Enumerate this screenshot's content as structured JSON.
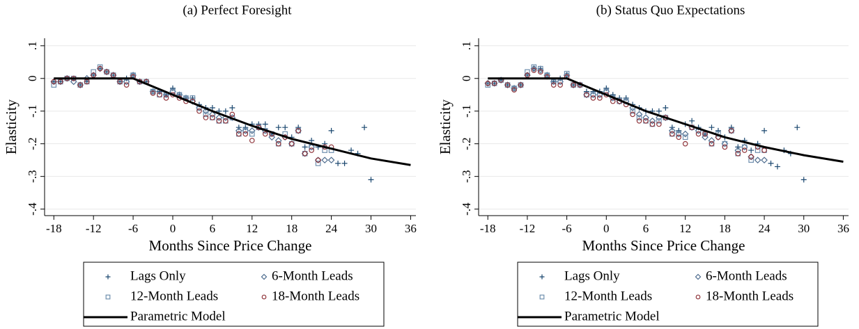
{
  "chart_data": [
    {
      "type": "scatter",
      "title": "(a) Perfect Foresight",
      "x_label": "Months Since Price Change",
      "y_label": "Elasticity",
      "xlim": [
        -19.4,
        36.8
      ],
      "ylim": [
        -0.42,
        0.123
      ],
      "xticks": [
        -18,
        -12,
        -6,
        0,
        6,
        12,
        18,
        24,
        30,
        36
      ],
      "yticks": [
        {
          "value": 0.1,
          "label": ".1"
        },
        0,
        {
          "value": -0.1,
          "label": "-.1"
        },
        {
          "value": -0.2,
          "label": "-.2"
        },
        {
          "value": -0.3,
          "label": "-.3"
        },
        {
          "value": -0.4,
          "label": "-.4"
        }
      ],
      "grid": true,
      "series": [
        {
          "name": "Lags Only",
          "marker": "plus",
          "color": "#1a476f",
          "x": [
            -18,
            -17,
            -16,
            -15,
            -14,
            -13,
            -12,
            -11,
            -10,
            -9,
            -8,
            -7,
            -6,
            -5,
            -4,
            -3,
            -2,
            -1,
            0,
            1,
            2,
            3,
            4,
            5,
            6,
            7,
            8,
            9,
            10,
            11,
            12,
            13,
            14,
            15,
            16,
            17,
            18,
            19,
            20,
            21,
            22,
            23,
            24,
            25,
            26,
            27,
            28,
            29,
            30
          ],
          "values": [
            -0.01,
            -0.01,
            0,
            0,
            -0.02,
            -0.01,
            0.01,
            0.03,
            0.02,
            0.01,
            -0.01,
            0,
            0.01,
            -0.01,
            -0.01,
            -0.04,
            -0.04,
            -0.05,
            -0.03,
            -0.05,
            -0.06,
            -0.06,
            -0.08,
            -0.09,
            -0.09,
            -0.1,
            -0.1,
            -0.09,
            -0.15,
            -0.15,
            -0.14,
            -0.14,
            -0.14,
            -0.17,
            -0.15,
            -0.15,
            -0.18,
            -0.15,
            -0.21,
            -0.19,
            -0.21,
            -0.2,
            -0.16,
            -0.26,
            -0.26,
            -0.22,
            -0.23,
            -0.15,
            -0.31
          ]
        },
        {
          "name": "6-Month Leads",
          "marker": "diamond",
          "color": "#4f6d8f",
          "x": [
            -18,
            -17,
            -16,
            -15,
            -14,
            -13,
            -12,
            -11,
            -10,
            -9,
            -8,
            -7,
            -6,
            -5,
            -4,
            -3,
            -2,
            -1,
            0,
            1,
            2,
            3,
            4,
            5,
            6,
            7,
            8,
            9,
            10,
            11,
            12,
            13,
            14,
            15,
            16,
            17,
            18,
            19,
            20,
            21,
            22,
            23,
            24
          ],
          "values": [
            -0.01,
            -0.01,
            0,
            -0.01,
            -0.02,
            0,
            0.01,
            0.03,
            0.02,
            0.01,
            -0.01,
            -0.01,
            0.01,
            -0.01,
            -0.01,
            -0.04,
            -0.04,
            -0.05,
            -0.04,
            -0.05,
            -0.06,
            -0.07,
            -0.09,
            -0.1,
            -0.11,
            -0.12,
            -0.12,
            -0.12,
            -0.16,
            -0.16,
            -0.16,
            -0.15,
            -0.16,
            -0.18,
            -0.19,
            -0.18,
            -0.2,
            -0.16,
            -0.23,
            -0.21,
            -0.25,
            -0.25,
            -0.25
          ]
        },
        {
          "name": "12-Month Leads",
          "marker": "square",
          "color": "#6f8fae",
          "x": [
            -18,
            -17,
            -16,
            -15,
            -14,
            -13,
            -12,
            -11,
            -10,
            -9,
            -8,
            -7,
            -6,
            -5,
            -4,
            -3,
            -2,
            -1,
            0,
            1,
            2,
            3,
            4,
            5,
            6,
            7,
            8,
            9,
            10,
            11,
            12,
            13,
            14,
            15,
            16,
            17,
            18,
            19,
            20,
            21,
            22,
            23,
            24
          ],
          "values": [
            -0.02,
            -0.01,
            0,
            0,
            -0.02,
            -0.01,
            0.02,
            0.035,
            0.02,
            0.01,
            -0.01,
            -0.01,
            0.01,
            -0.01,
            -0.01,
            -0.04,
            -0.05,
            -0.05,
            -0.04,
            -0.05,
            -0.06,
            -0.06,
            -0.09,
            -0.11,
            -0.12,
            -0.13,
            -0.13,
            -0.12,
            -0.17,
            -0.16,
            -0.17,
            -0.15,
            -0.16,
            -0.17,
            -0.2,
            -0.17,
            -0.2,
            -0.16,
            -0.23,
            -0.21,
            -0.26,
            -0.22,
            -0.22
          ]
        },
        {
          "name": "18-Month Leads",
          "marker": "circle",
          "color": "#90353b",
          "x": [
            -18,
            -17,
            -16,
            -15,
            -14,
            -13,
            -12,
            -11,
            -10,
            -9,
            -8,
            -7,
            -6,
            -5,
            -4,
            -3,
            -2,
            -1,
            0,
            1,
            2,
            3,
            4,
            5,
            6,
            7,
            8,
            9,
            10,
            11,
            12,
            13,
            14,
            15,
            16,
            17,
            18,
            19,
            20,
            21,
            22,
            23,
            24
          ],
          "values": [
            -0.01,
            -0.01,
            0,
            0,
            -0.02,
            -0.01,
            0.01,
            0.03,
            0.02,
            0.01,
            -0.01,
            -0.02,
            0.005,
            -0.01,
            -0.01,
            -0.045,
            -0.05,
            -0.06,
            -0.05,
            -0.06,
            -0.07,
            -0.07,
            -0.1,
            -0.12,
            -0.12,
            -0.13,
            -0.13,
            -0.11,
            -0.17,
            -0.17,
            -0.19,
            -0.15,
            -0.17,
            -0.17,
            -0.2,
            -0.18,
            -0.2,
            -0.16,
            -0.23,
            -0.22,
            -0.25,
            -0.21,
            -0.21
          ]
        },
        {
          "name": "Parametric Model",
          "marker": "line",
          "color": "#000000",
          "x": [
            -18,
            -6,
            0,
            6,
            12,
            18,
            24,
            30,
            36
          ],
          "values": [
            0,
            0,
            -0.05,
            -0.1,
            -0.145,
            -0.185,
            -0.215,
            -0.245,
            -0.265
          ]
        }
      ]
    },
    {
      "type": "scatter",
      "title": "(b) Status Quo Expectations",
      "x_label": "Months Since Price Change",
      "y_label": "Elasticity",
      "xlim": [
        -19.4,
        36.8
      ],
      "ylim": [
        -0.42,
        0.123
      ],
      "xticks": [
        -18,
        -12,
        -6,
        0,
        6,
        12,
        18,
        24,
        30,
        36
      ],
      "yticks": [
        {
          "value": 0.1,
          "label": ".1"
        },
        0,
        {
          "value": -0.1,
          "label": "-.1"
        },
        {
          "value": -0.2,
          "label": "-.2"
        },
        {
          "value": -0.3,
          "label": "-.3"
        },
        {
          "value": -0.4,
          "label": "-.4"
        }
      ],
      "grid": true,
      "series": [
        {
          "name": "Lags Only",
          "marker": "plus",
          "color": "#1a476f",
          "x": [
            -18,
            -17,
            -16,
            -15,
            -14,
            -13,
            -12,
            -11,
            -10,
            -9,
            -8,
            -7,
            -6,
            -5,
            -4,
            -3,
            -2,
            -1,
            0,
            1,
            2,
            3,
            4,
            5,
            6,
            7,
            8,
            9,
            10,
            11,
            12,
            13,
            14,
            15,
            16,
            17,
            18,
            19,
            20,
            21,
            22,
            23,
            24,
            25,
            26,
            27,
            28,
            29,
            30
          ],
          "values": [
            -0.015,
            -0.015,
            -0.005,
            -0.02,
            -0.03,
            -0.02,
            0.01,
            0.03,
            0.03,
            0.01,
            -0.01,
            0,
            0.01,
            -0.02,
            -0.02,
            -0.04,
            -0.04,
            -0.04,
            -0.03,
            -0.05,
            -0.06,
            -0.06,
            -0.08,
            -0.09,
            -0.1,
            -0.1,
            -0.1,
            -0.09,
            -0.15,
            -0.16,
            -0.14,
            -0.13,
            -0.15,
            -0.17,
            -0.15,
            -0.16,
            -0.18,
            -0.15,
            -0.21,
            -0.19,
            -0.22,
            -0.2,
            -0.16,
            -0.26,
            -0.27,
            -0.22,
            -0.23,
            -0.15,
            -0.31
          ]
        },
        {
          "name": "6-Month Leads",
          "marker": "diamond",
          "color": "#4f6d8f",
          "x": [
            -18,
            -17,
            -16,
            -15,
            -14,
            -13,
            -12,
            -11,
            -10,
            -9,
            -8,
            -7,
            -6,
            -5,
            -4,
            -3,
            -2,
            -1,
            0,
            1,
            2,
            3,
            4,
            5,
            6,
            7,
            8,
            9,
            10,
            11,
            12,
            13,
            14,
            15,
            16,
            17,
            18,
            19,
            20,
            21,
            22,
            23,
            24
          ],
          "values": [
            -0.015,
            -0.015,
            -0.005,
            -0.02,
            -0.03,
            -0.02,
            0.01,
            0.03,
            0.025,
            0.01,
            -0.01,
            -0.01,
            0.01,
            -0.02,
            -0.02,
            -0.05,
            -0.05,
            -0.05,
            -0.04,
            -0.06,
            -0.07,
            -0.07,
            -0.09,
            -0.11,
            -0.12,
            -0.13,
            -0.12,
            -0.12,
            -0.16,
            -0.17,
            -0.17,
            -0.15,
            -0.16,
            -0.18,
            -0.19,
            -0.18,
            -0.2,
            -0.16,
            -0.22,
            -0.21,
            -0.24,
            -0.25,
            -0.25
          ]
        },
        {
          "name": "12-Month Leads",
          "marker": "square",
          "color": "#6f8fae",
          "x": [
            -18,
            -17,
            -16,
            -15,
            -14,
            -13,
            -12,
            -11,
            -10,
            -9,
            -8,
            -7,
            -6,
            -5,
            -4,
            -3,
            -2,
            -1,
            0,
            1,
            2,
            3,
            4,
            5,
            6,
            7,
            8,
            9,
            10,
            11,
            12,
            13,
            14,
            15,
            16,
            17,
            18,
            19,
            20,
            21,
            22,
            23,
            24
          ],
          "values": [
            -0.02,
            -0.015,
            -0.005,
            -0.02,
            -0.03,
            -0.02,
            0.02,
            0.035,
            0.03,
            0.01,
            -0.01,
            -0.01,
            0.015,
            -0.02,
            -0.02,
            -0.05,
            -0.05,
            -0.05,
            -0.04,
            -0.06,
            -0.07,
            -0.07,
            -0.1,
            -0.12,
            -0.13,
            -0.14,
            -0.13,
            -0.12,
            -0.17,
            -0.17,
            -0.18,
            -0.15,
            -0.16,
            -0.17,
            -0.2,
            -0.17,
            -0.2,
            -0.16,
            -0.23,
            -0.21,
            -0.25,
            -0.22,
            -0.22
          ]
        },
        {
          "name": "18-Month Leads",
          "marker": "circle",
          "color": "#90353b",
          "x": [
            -18,
            -17,
            -16,
            -15,
            -14,
            -13,
            -12,
            -11,
            -10,
            -9,
            -8,
            -7,
            -6,
            -5,
            -4,
            -3,
            -2,
            -1,
            0,
            1,
            2,
            3,
            4,
            5,
            6,
            7,
            8,
            9,
            10,
            11,
            12,
            13,
            14,
            15,
            16,
            17,
            18,
            19,
            20,
            21,
            22,
            23,
            24
          ],
          "values": [
            -0.015,
            -0.015,
            -0.005,
            -0.02,
            -0.035,
            -0.02,
            0.01,
            0.025,
            0.02,
            0.005,
            -0.02,
            -0.02,
            0.005,
            -0.02,
            -0.02,
            -0.05,
            -0.06,
            -0.06,
            -0.05,
            -0.07,
            -0.07,
            -0.08,
            -0.11,
            -0.13,
            -0.13,
            -0.14,
            -0.14,
            -0.12,
            -0.17,
            -0.18,
            -0.2,
            -0.15,
            -0.17,
            -0.17,
            -0.2,
            -0.18,
            -0.21,
            -0.16,
            -0.23,
            -0.22,
            -0.24,
            -0.21,
            -0.22
          ]
        },
        {
          "name": "Parametric Model",
          "marker": "line",
          "color": "#000000",
          "x": [
            -18,
            -6,
            0,
            6,
            12,
            18,
            24,
            30,
            36
          ],
          "values": [
            0,
            0,
            -0.05,
            -0.1,
            -0.14,
            -0.18,
            -0.21,
            -0.235,
            -0.255
          ]
        }
      ]
    }
  ]
}
